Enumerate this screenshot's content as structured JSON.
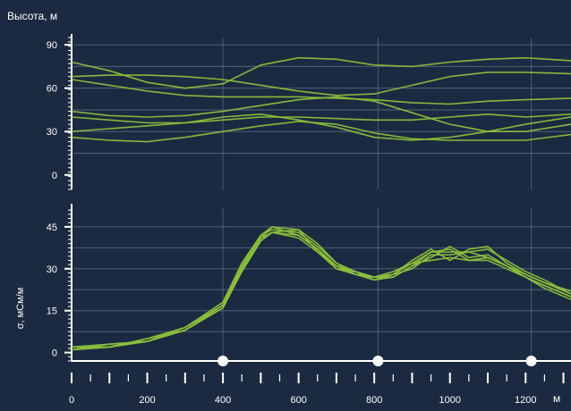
{
  "colors": {
    "background": "#1b2a40",
    "line": "#8cbf3c",
    "grid": "#5f6f86",
    "axis": "#ffffff"
  },
  "chart_data": [
    {
      "type": "line",
      "ylabel": "Высота, м",
      "ylim": [
        -10,
        95
      ],
      "yticks": [
        0,
        30,
        60,
        90
      ],
      "xlim": [
        0,
        1320
      ],
      "grid": true,
      "series": [
        {
          "x": [
            0,
            100,
            200,
            300,
            400,
            500,
            600,
            700,
            800,
            900,
            1000,
            1100,
            1200,
            1320
          ],
          "values": [
            78,
            72,
            64,
            60,
            63,
            76,
            81,
            80,
            76,
            75,
            78,
            80,
            81,
            79
          ]
        },
        {
          "x": [
            0,
            100,
            200,
            300,
            400,
            500,
            600,
            700,
            800,
            900,
            1000,
            1100,
            1200,
            1320
          ],
          "values": [
            68,
            69,
            69,
            68,
            66,
            62,
            58,
            55,
            56,
            62,
            68,
            71,
            71,
            70
          ]
        },
        {
          "x": [
            0,
            100,
            200,
            300,
            400,
            500,
            600,
            700,
            800,
            900,
            1000,
            1100,
            1200,
            1320
          ],
          "values": [
            66,
            62,
            58,
            55,
            54,
            54,
            54,
            53,
            52,
            50,
            49,
            51,
            52,
            53
          ]
        },
        {
          "x": [
            0,
            100,
            200,
            300,
            400,
            500,
            600,
            700,
            800,
            900,
            1000,
            1100,
            1200,
            1320
          ],
          "values": [
            44,
            41,
            40,
            41,
            44,
            48,
            52,
            54,
            51,
            43,
            35,
            30,
            30,
            35
          ]
        },
        {
          "x": [
            0,
            100,
            200,
            300,
            400,
            500,
            600,
            700,
            800,
            900,
            1000,
            1100,
            1200,
            1320
          ],
          "values": [
            40,
            38,
            36,
            36,
            38,
            40,
            40,
            39,
            38,
            38,
            40,
            42,
            40,
            42
          ]
        },
        {
          "x": [
            0,
            100,
            200,
            300,
            400,
            500,
            600,
            700,
            800,
            900,
            1000,
            1100,
            1200,
            1320
          ],
          "values": [
            30,
            32,
            34,
            36,
            40,
            42,
            38,
            33,
            26,
            24,
            26,
            30,
            35,
            40
          ]
        },
        {
          "x": [
            0,
            100,
            200,
            300,
            400,
            500,
            600,
            700,
            800,
            900,
            1000,
            1100,
            1200,
            1320
          ],
          "values": [
            26,
            24,
            23,
            26,
            30,
            34,
            37,
            35,
            29,
            25,
            24,
            24,
            24,
            28
          ]
        }
      ]
    },
    {
      "type": "line",
      "ylabel": "σ, мСм/м",
      "xlabel": "м",
      "ylim": [
        -3,
        52
      ],
      "yticks": [
        0,
        15,
        30,
        45
      ],
      "xlim": [
        0,
        1320
      ],
      "xticks": [
        0,
        200,
        400,
        600,
        800,
        1000,
        1200
      ],
      "grid": true,
      "markers_x": [
        400,
        810,
        1215
      ],
      "series": [
        {
          "x": [
            0,
            100,
            200,
            300,
            400,
            450,
            500,
            530,
            600,
            650,
            700,
            750,
            800,
            850,
            900,
            950,
            1000,
            1050,
            1100,
            1150,
            1200,
            1250,
            1320
          ],
          "values": [
            1,
            2,
            4,
            8,
            17,
            30,
            41,
            45,
            42,
            37,
            31,
            28,
            27,
            28,
            32,
            36,
            36,
            36,
            34,
            31,
            27,
            24,
            20
          ]
        },
        {
          "x": [
            0,
            100,
            200,
            300,
            400,
            450,
            500,
            530,
            600,
            650,
            700,
            750,
            800,
            850,
            900,
            950,
            1000,
            1050,
            1100,
            1150,
            1200,
            1250,
            1320
          ],
          "values": [
            1,
            3,
            4,
            8,
            16,
            29,
            40,
            43,
            44,
            36,
            30,
            29,
            26,
            28,
            33,
            37,
            33,
            37,
            38,
            32,
            28,
            25,
            21
          ]
        },
        {
          "x": [
            0,
            100,
            200,
            300,
            400,
            450,
            500,
            530,
            600,
            650,
            700,
            750,
            800,
            850,
            900,
            950,
            1000,
            1050,
            1100,
            1150,
            1200,
            1250,
            1320
          ],
          "values": [
            2,
            2,
            5,
            9,
            17,
            31,
            42,
            44,
            43,
            38,
            32,
            28,
            27,
            27,
            31,
            34,
            38,
            34,
            35,
            31,
            28,
            25,
            22
          ]
        },
        {
          "x": [
            0,
            100,
            200,
            300,
            400,
            450,
            500,
            530,
            600,
            650,
            700,
            750,
            800,
            850,
            900,
            950,
            1000,
            1050,
            1100,
            1150,
            1200,
            1250,
            1320
          ],
          "values": [
            1,
            2,
            4,
            8,
            17,
            29,
            40,
            43,
            41,
            36,
            31,
            29,
            27,
            29,
            32,
            33,
            34,
            33,
            33,
            30,
            27,
            24,
            20
          ]
        },
        {
          "x": [
            0,
            100,
            200,
            300,
            400,
            450,
            500,
            530,
            600,
            650,
            700,
            750,
            800,
            850,
            900,
            950,
            1000,
            1050,
            1100,
            1150,
            1200,
            1250,
            1320
          ],
          "values": [
            2,
            3,
            4,
            9,
            18,
            32,
            42,
            45,
            44,
            39,
            32,
            29,
            27,
            28,
            30,
            35,
            35,
            36,
            37,
            33,
            29,
            26,
            21
          ]
        },
        {
          "x": [
            0,
            100,
            200,
            300,
            400,
            450,
            500,
            530,
            600,
            650,
            700,
            750,
            800,
            850,
            900,
            950,
            1000,
            1050,
            1100,
            1150,
            1200,
            1250,
            1320
          ],
          "values": [
            1,
            2,
            5,
            8,
            16,
            30,
            41,
            43,
            42,
            37,
            30,
            28,
            26,
            27,
            31,
            36,
            37,
            33,
            34,
            31,
            27,
            23,
            19
          ]
        }
      ]
    }
  ]
}
